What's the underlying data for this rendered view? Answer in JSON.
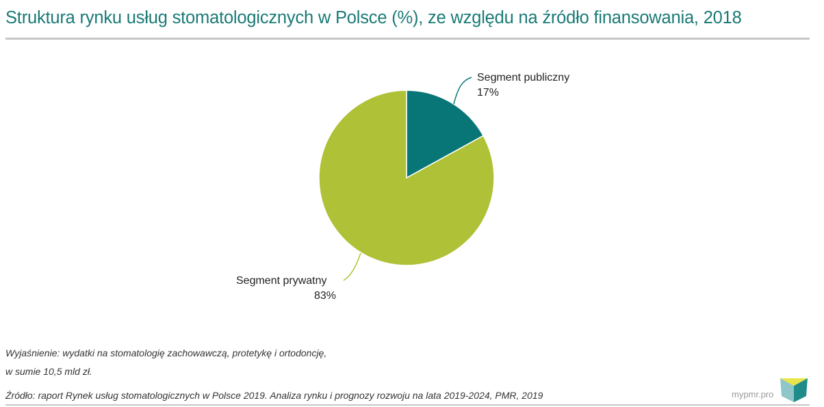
{
  "title": "Struktura rynku usług stomatologicznych w Polsce (%), ze względu na źródło finansowania, 2018",
  "colors": {
    "title": "#1a7a76",
    "public": "#087676",
    "private": "#afc136",
    "rule": "#c6c6c6"
  },
  "chart_data": {
    "type": "pie",
    "title": "Struktura rynku usług stomatologicznych w Polsce (%), ze względu na źródło finansowania, 2018",
    "unit": "%",
    "start_angle_deg": 0,
    "direction": "clockwise",
    "legend": "none",
    "slices": [
      {
        "label": "Segment publiczny",
        "value": 17,
        "value_label": "17%",
        "color": "#087676"
      },
      {
        "label": "Segment prywatny",
        "value": 83,
        "value_label": "83%",
        "color": "#afc136"
      }
    ]
  },
  "notes": {
    "explanation_line1": "Wyjaśnienie: wydatki na stomatologię zachowawczą, protetykę i ortodoncję,",
    "explanation_line2": "w sumie 10,5 mld zł.",
    "source": "Źródło: raport Rynek usług stomatologicznych w Polsce 2019. Analiza rynku i prognozy rozwoju na lata 2019-2024, PMR, 2019"
  },
  "brand": {
    "name": "mypmr.pro",
    "logo_icon": "cube-logo-icon"
  }
}
